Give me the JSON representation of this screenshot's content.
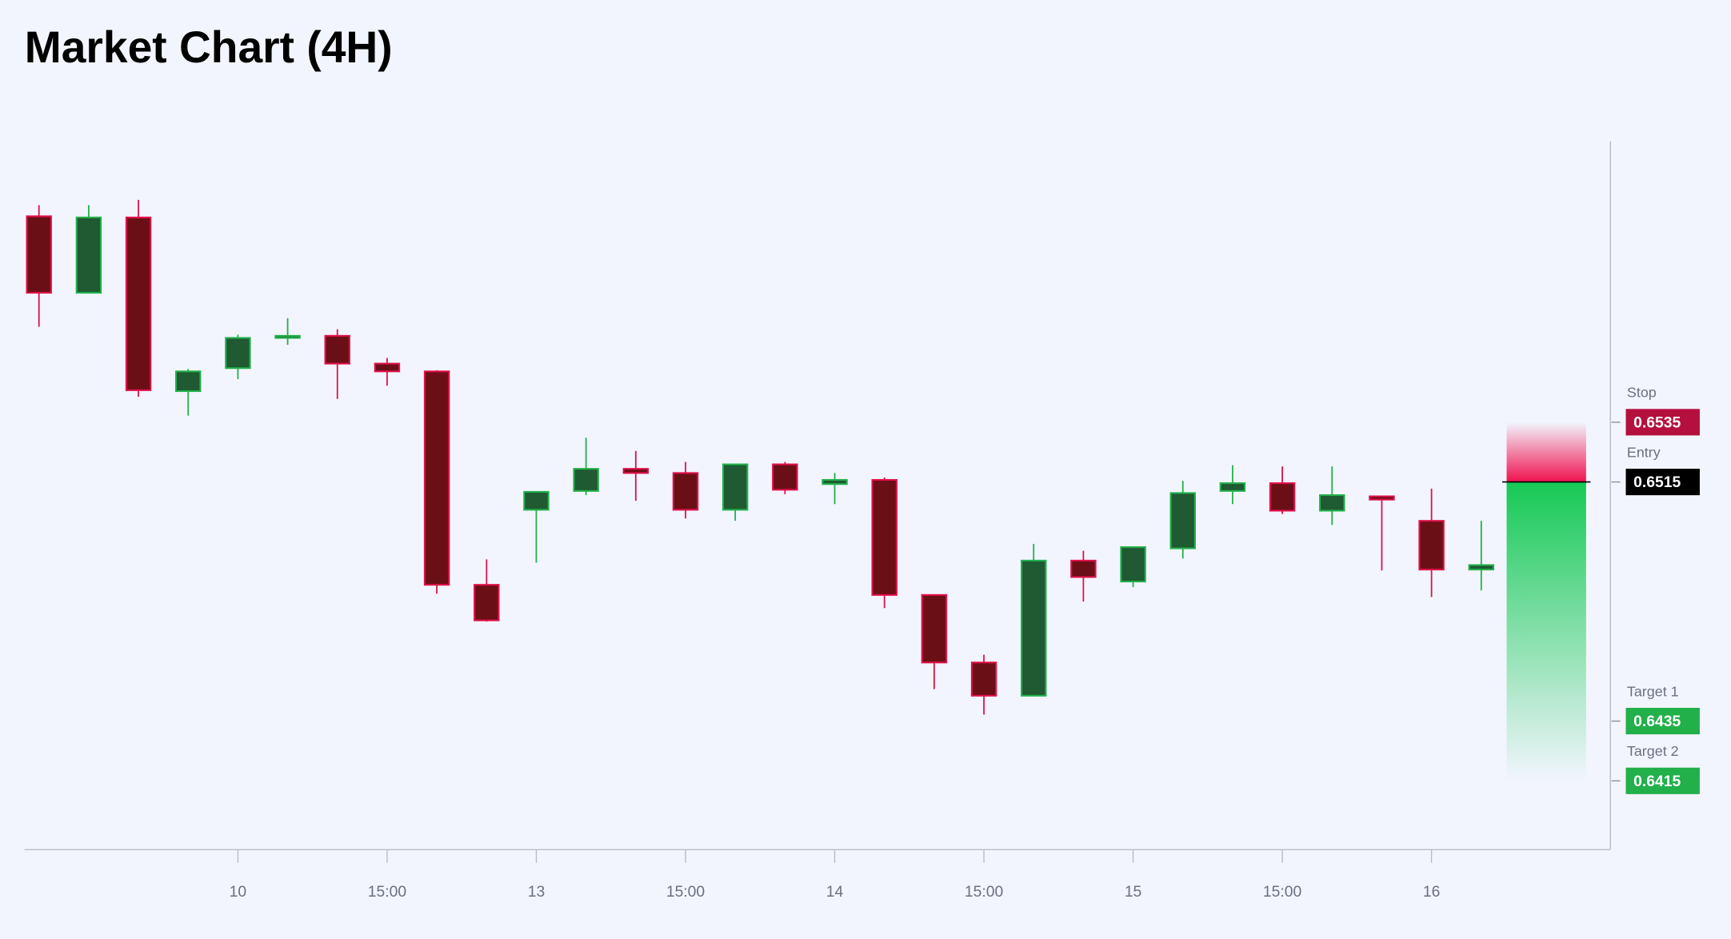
{
  "chart_data": {
    "type": "candlestick",
    "title": "Market Chart (4H)",
    "categories": [
      null,
      null,
      null,
      null,
      "10",
      null,
      null,
      "15:00",
      null,
      null,
      "13",
      null,
      null,
      "15:00",
      null,
      null,
      "14",
      null,
      null,
      "15:00",
      null,
      null,
      "15",
      null,
      null,
      "15:00",
      null,
      null,
      "16",
      null
    ],
    "open": [
      0.66039,
      0.65783,
      0.66035,
      0.65454,
      0.65531,
      0.65632,
      0.65639,
      0.65546,
      0.6552,
      0.64806,
      0.65057,
      0.6512,
      0.65194,
      0.6518,
      0.65057,
      0.65209,
      0.65143,
      0.65157,
      0.64772,
      0.64546,
      0.64435,
      0.64887,
      0.64817,
      0.64928,
      0.6512,
      0.65146,
      0.65054,
      0.65102,
      0.6502,
      0.64857
    ],
    "high": [
      0.66076,
      0.66076,
      0.66094,
      0.65528,
      0.65643,
      0.65698,
      0.65661,
      0.65565,
      0.65524,
      0.64891,
      0.65117,
      0.65298,
      0.65254,
      0.65217,
      0.65209,
      0.65217,
      0.6518,
      0.65165,
      0.64772,
      0.64572,
      0.64943,
      0.6492,
      0.64932,
      0.65154,
      0.65206,
      0.65202,
      0.65202,
      0.65102,
      0.65128,
      0.6502
    ],
    "low": [
      0.65669,
      0.65783,
      0.65435,
      0.65372,
      0.65494,
      0.65609,
      0.65428,
      0.65472,
      0.64776,
      0.64683,
      0.6488,
      0.65106,
      0.65087,
      0.65028,
      0.6502,
      0.65109,
      0.65076,
      0.64728,
      0.64457,
      0.64372,
      0.64435,
      0.6475,
      0.64798,
      0.64894,
      0.65076,
      0.65043,
      0.65006,
      0.64854,
      0.64765,
      0.64787
    ],
    "close": [
      0.65783,
      0.66035,
      0.65457,
      0.6552,
      0.65632,
      0.65639,
      0.65546,
      0.6552,
      0.64806,
      0.64687,
      0.65117,
      0.65194,
      0.6518,
      0.65057,
      0.65209,
      0.65124,
      0.65157,
      0.64772,
      0.64546,
      0.64435,
      0.64887,
      0.64832,
      0.64932,
      0.65113,
      0.65146,
      0.65054,
      0.65106,
      0.65091,
      0.64857,
      0.64872
    ],
    "up_color": "#22b04b",
    "down_color": "#e0104a",
    "ylim": [
      0.6392,
      0.6629
    ],
    "levels": [
      {
        "label": "Stop",
        "value": 0.6535,
        "color": "#b5103d"
      },
      {
        "label": "Entry",
        "value": 0.6515,
        "color": "#000000"
      },
      {
        "label": "Target 1",
        "value": 0.6435,
        "color": "#22b04b"
      },
      {
        "label": "Target 2",
        "value": 0.6415,
        "color": "#22b04b"
      }
    ]
  }
}
